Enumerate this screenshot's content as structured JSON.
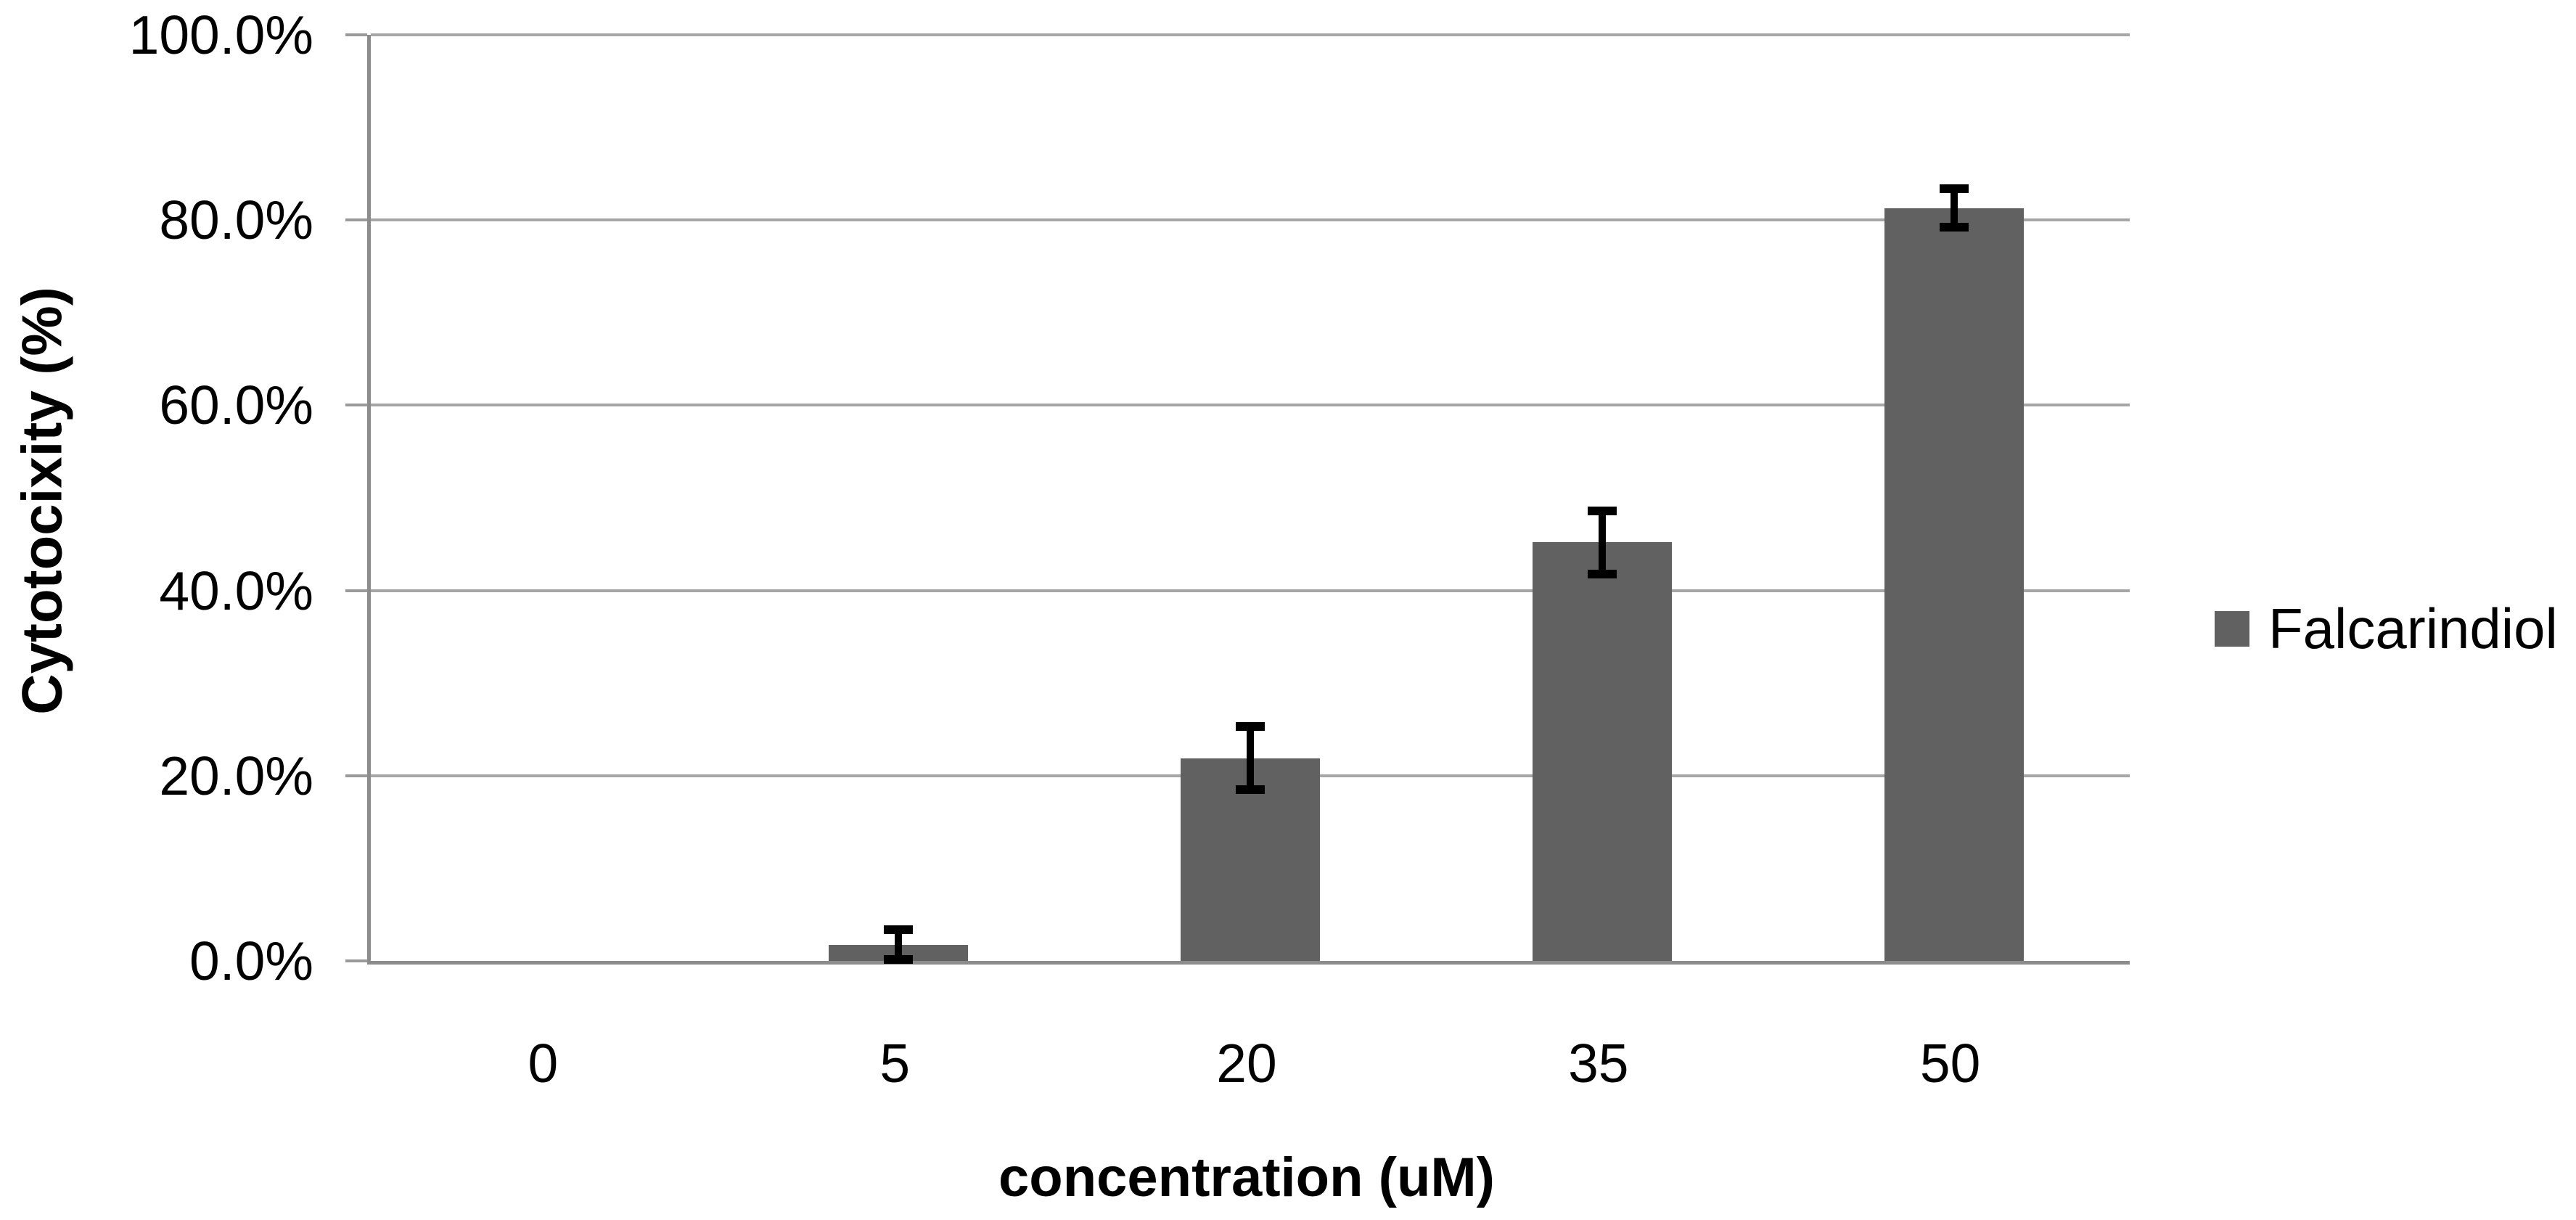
{
  "chart_data": {
    "type": "bar",
    "title": "",
    "xlabel": "concentration (uM)",
    "ylabel": "Cytotocixity (%)",
    "categories": [
      "0",
      "5",
      "20",
      "35",
      "50"
    ],
    "series": [
      {
        "name": "Falcarindiol",
        "values": [
          0,
          1.7,
          21.9,
          45.2,
          81.3
        ],
        "errors": [
          0,
          1.7,
          3.4,
          3.4,
          2.1
        ]
      }
    ],
    "ylim": [
      0,
      100
    ],
    "ytick_step": 20,
    "ytick_labels": [
      "0.0%",
      "20.0%",
      "40.0%",
      "60.0%",
      "80.0%",
      "100.0%"
    ],
    "grid": true,
    "legend_position": "right",
    "colors": {
      "bar_fill": "#616161",
      "gridline": "#a6a6a6",
      "axis_line": "#8c8c8c",
      "tick_mark": "#9a9a9a",
      "error_bar": "#000000",
      "text": "#000000",
      "background": "#ffffff"
    }
  }
}
